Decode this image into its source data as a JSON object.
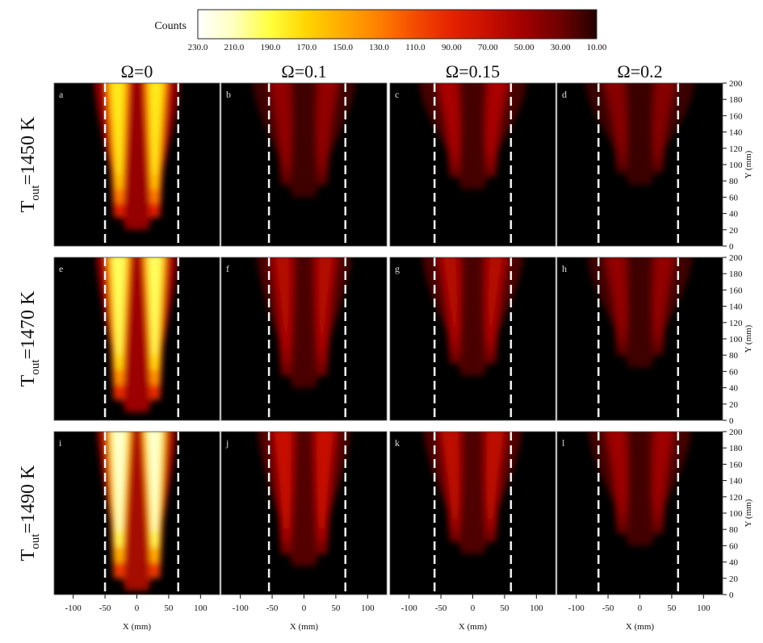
{
  "chart_data": {
    "type": "heatmap",
    "colorbar": {
      "label": "Counts",
      "ticks": [
        "230.0",
        "210.0",
        "190.0",
        "170.0",
        "150.0",
        "130.0",
        "110.0",
        "90.00",
        "70.00",
        "50.00",
        "30.00",
        "10.00"
      ],
      "range": [
        230,
        10
      ],
      "colors": [
        "#ffffff",
        "#ffffbe",
        "#ffff3c",
        "#ffd400",
        "#ffaa00",
        "#ff7f00",
        "#f44b00",
        "#e52200",
        "#c80f00",
        "#a00000",
        "#6e0000",
        "#250000"
      ]
    },
    "column_titles": [
      {
        "prefix": "Ω=",
        "value": "0"
      },
      {
        "prefix": "Ω=",
        "value": "0.1"
      },
      {
        "prefix": "Ω=",
        "value": "0.15"
      },
      {
        "prefix": "Ω=",
        "value": "0.2"
      }
    ],
    "row_titles": [
      {
        "main": "T",
        "sub": "out",
        "value": "=1450 K"
      },
      {
        "main": "T",
        "sub": "out",
        "value": "=1470 K"
      },
      {
        "main": "T",
        "sub": "out",
        "value": "=1490 K"
      }
    ],
    "x_axis": {
      "label": "X (mm)",
      "ticks": [
        "-100",
        "-50",
        "0",
        "50",
        "100"
      ],
      "range": [
        -130,
        130
      ]
    },
    "y_axis": {
      "label": "Y (mm)",
      "ticks": [
        "0",
        "20",
        "40",
        "60",
        "80",
        "100",
        "120",
        "140",
        "160",
        "180",
        "200"
      ],
      "range": [
        0,
        200
      ]
    },
    "panels": [
      {
        "label": "a",
        "peak_counts": 180,
        "flame_base_y": 35,
        "dashed_x": [
          -50,
          65
        ]
      },
      {
        "label": "b",
        "peak_counts": 45,
        "flame_base_y": 75,
        "dashed_x": [
          -55,
          65
        ]
      },
      {
        "label": "c",
        "peak_counts": 55,
        "flame_base_y": 85,
        "dashed_x": [
          -60,
          60
        ]
      },
      {
        "label": "d",
        "peak_counts": 40,
        "flame_base_y": 90,
        "dashed_x": [
          -65,
          60
        ]
      },
      {
        "label": "e",
        "peak_counts": 195,
        "flame_base_y": 25,
        "dashed_x": [
          -50,
          65
        ]
      },
      {
        "label": "f",
        "peak_counts": 60,
        "flame_base_y": 55,
        "dashed_x": [
          -55,
          65
        ]
      },
      {
        "label": "g",
        "peak_counts": 60,
        "flame_base_y": 70,
        "dashed_x": [
          -60,
          60
        ]
      },
      {
        "label": "h",
        "peak_counts": 45,
        "flame_base_y": 80,
        "dashed_x": [
          -65,
          60
        ]
      },
      {
        "label": "i",
        "peak_counts": 215,
        "flame_base_y": 20,
        "dashed_x": [
          -50,
          65
        ]
      },
      {
        "label": "j",
        "peak_counts": 70,
        "flame_base_y": 50,
        "dashed_x": [
          -55,
          65
        ]
      },
      {
        "label": "k",
        "peak_counts": 65,
        "flame_base_y": 65,
        "dashed_x": [
          -60,
          60
        ]
      },
      {
        "label": "l",
        "peak_counts": 50,
        "flame_base_y": 75,
        "dashed_x": [
          -65,
          60
        ]
      }
    ]
  }
}
